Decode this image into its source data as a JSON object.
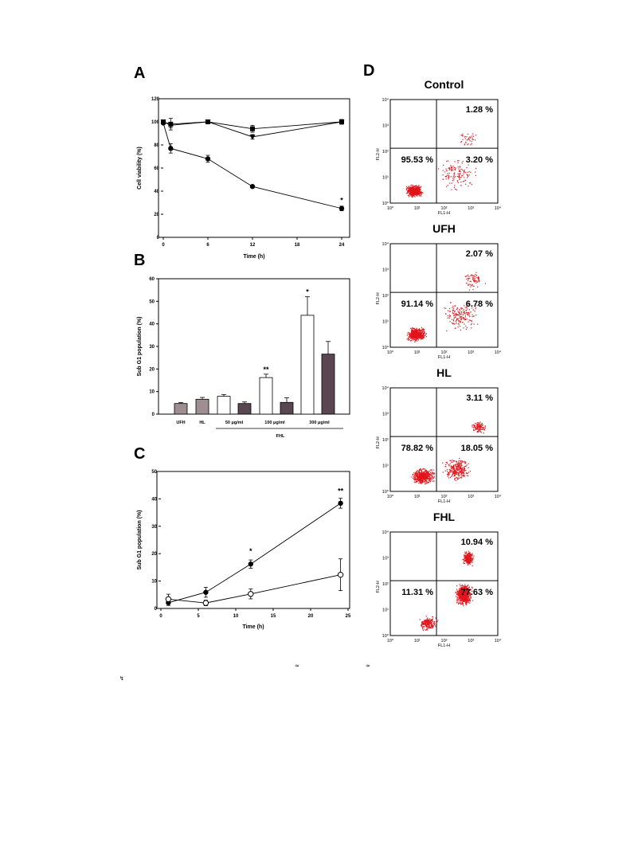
{
  "chart_data": [
    {
      "id": "A",
      "panel_label": "A",
      "type": "line",
      "xlabel": "Time (h)",
      "ylabel": "Cell viability (%)",
      "xlim": [
        0,
        24
      ],
      "ylim": [
        0,
        120
      ],
      "xticks": [
        0,
        6,
        12,
        18,
        24
      ],
      "yticks": [
        0,
        20,
        40,
        60,
        80,
        100,
        120
      ],
      "series": [
        {
          "marker": "filled-square",
          "x": [
            0,
            1,
            6,
            12,
            24
          ],
          "y": [
            100,
            98,
            100,
            94,
            100
          ],
          "err": [
            1,
            5,
            1,
            3,
            2
          ]
        },
        {
          "marker": "filled-triangle",
          "x": [
            0,
            1,
            6,
            12,
            24
          ],
          "y": [
            100,
            97,
            100,
            87,
            100
          ],
          "err": [
            1,
            2,
            1,
            2,
            2
          ]
        },
        {
          "marker": "filled-circle",
          "x": [
            0,
            1,
            6,
            12,
            24
          ],
          "y": [
            99,
            77,
            68,
            44,
            25
          ],
          "err": [
            1,
            4,
            3,
            1,
            2
          ]
        }
      ],
      "annotations": [
        {
          "x": 24,
          "y": 30,
          "text": "*"
        }
      ]
    },
    {
      "id": "B",
      "panel_label": "B",
      "type": "bar",
      "ylabel": "Sub G1 population (%)",
      "ylim": [
        0,
        60
      ],
      "yticks": [
        0,
        10,
        20,
        30,
        40,
        50,
        60
      ],
      "bars": [
        {
          "value": 4.7,
          "err": 0.4,
          "fill": "#9e8e92"
        },
        {
          "value": 6.6,
          "err": 0.8,
          "fill": "#9e8e92"
        },
        {
          "value": 7.9,
          "err": 0.8,
          "fill": "#ffffff"
        },
        {
          "value": 4.7,
          "err": 0.7,
          "fill": "#5a4650"
        },
        {
          "value": 16.2,
          "err": 1.5,
          "fill": "#ffffff",
          "star": "**"
        },
        {
          "value": 5.2,
          "err": 2.0,
          "fill": "#5a4650"
        },
        {
          "value": 43.8,
          "err": 8.2,
          "fill": "#ffffff",
          "star": "*"
        },
        {
          "value": 26.6,
          "err": 5.6,
          "fill": "#5a4650"
        }
      ],
      "group_labels": [
        "UFH",
        "HL",
        "50 μg/ml",
        "100 μg/ml",
        "300 μg/ml"
      ],
      "sublabel": "FHL"
    },
    {
      "id": "C",
      "panel_label": "C",
      "type": "line",
      "xlabel": "Time (h)",
      "ylabel": "Sub G1 population (%)",
      "xlim": [
        0,
        25
      ],
      "ylim": [
        0,
        50
      ],
      "xticks": [
        0,
        5,
        10,
        15,
        20,
        25
      ],
      "yticks": [
        0,
        10,
        20,
        30,
        40,
        50
      ],
      "series": [
        {
          "marker": "filled-circle",
          "x": [
            1,
            6,
            12,
            24
          ],
          "y": [
            2.1,
            5.9,
            16.2,
            38.4
          ],
          "err": [
            1.0,
            1.8,
            1.5,
            1.8
          ]
        },
        {
          "marker": "open-circle",
          "x": [
            1,
            6,
            12,
            24
          ],
          "y": [
            3.4,
            2.0,
            5.3,
            12.3
          ],
          "err": [
            1.8,
            1.0,
            1.8,
            5.8
          ]
        }
      ],
      "annotations": [
        {
          "x": 12,
          "y": 20,
          "text": "*"
        },
        {
          "x": 24,
          "y": 42,
          "text": "**"
        }
      ]
    },
    {
      "id": "D",
      "panel_label": "D",
      "type": "scatter",
      "xlabel": "FL1-H",
      "ylabel": "FL2-H",
      "ticks": [
        "10⁰",
        "10¹",
        "10²",
        "10³",
        "10⁴"
      ],
      "plots": [
        {
          "title": "Control",
          "q_ur": "1.28 %",
          "q_ll": "95.53 %",
          "q_lr": "3.20 %"
        },
        {
          "title": "UFH",
          "q_ur": "2.07 %",
          "q_ll": "91.14 %",
          "q_lr": "6.78 %"
        },
        {
          "title": "HL",
          "q_ur": "3.11 %",
          "q_ll": "78.82 %",
          "q_lr": "18.05 %"
        },
        {
          "title": "FHL",
          "q_ur": "10.94 %",
          "q_ll": "11.31 %",
          "q_lr": "77.63 %"
        }
      ]
    }
  ],
  "stray_marks": [
    "≈",
    "≈",
    "↯"
  ]
}
